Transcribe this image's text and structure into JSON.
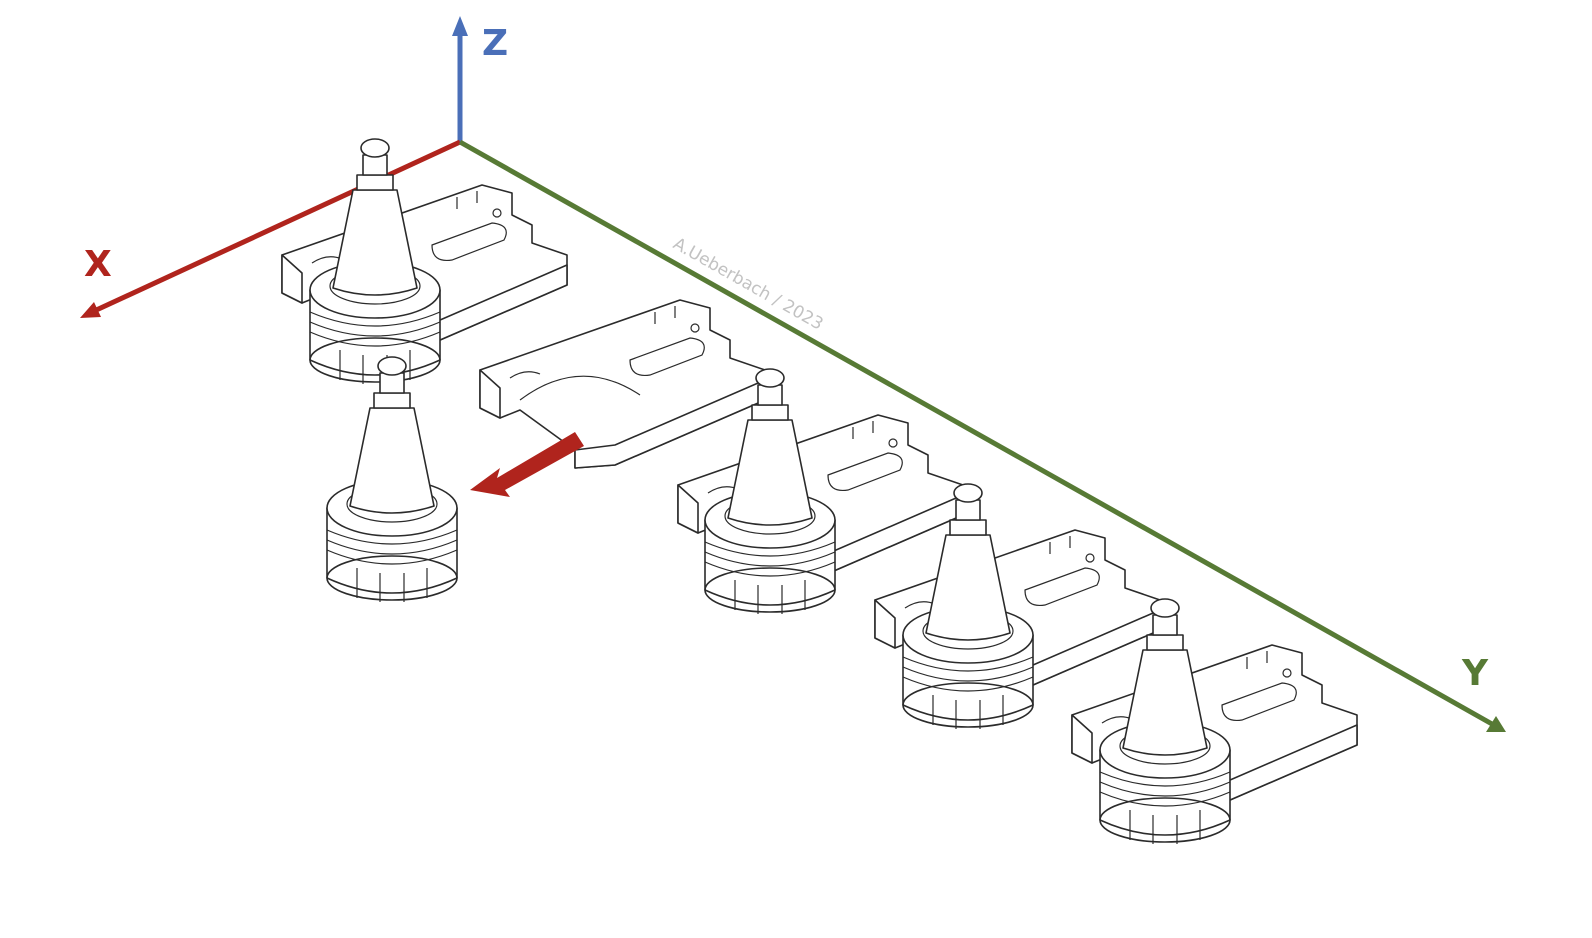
{
  "axes": {
    "x": {
      "label": "X",
      "color": "#b0241d"
    },
    "y": {
      "label": "Y",
      "color": "#577a35"
    },
    "z": {
      "label": "Z",
      "color": "#4a6fb8"
    }
  },
  "watermark": {
    "text": "A.Ueberbach / 2023",
    "color": "#c2c2c2"
  },
  "removal_arrow": {
    "color": "#b0241d"
  },
  "tool_holders": [
    {
      "slot": 1,
      "state": "seated"
    },
    {
      "slot": 2,
      "state": "removed"
    },
    {
      "slot": 3,
      "state": "seated"
    },
    {
      "slot": 4,
      "state": "seated"
    },
    {
      "slot": 5,
      "state": "seated"
    }
  ]
}
